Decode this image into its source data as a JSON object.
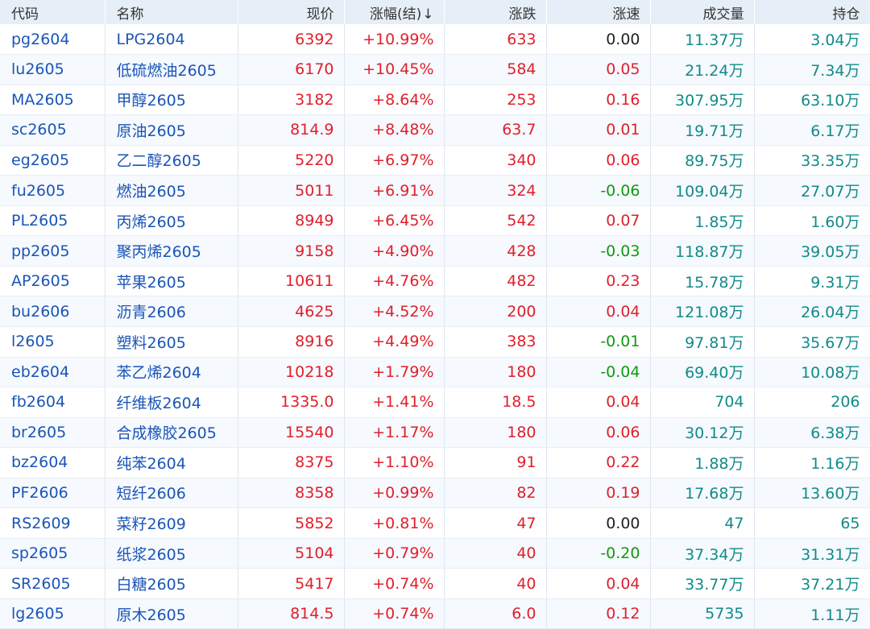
{
  "header": {
    "code": "代码",
    "name": "名称",
    "price": "现价",
    "change_pct": "涨幅(结)",
    "sort_arrow": "↓",
    "change": "涨跌",
    "speed": "涨速",
    "volume": "成交量",
    "open_interest": "持仓"
  },
  "colors": {
    "up": "#e0202c",
    "down": "#119911",
    "flat": "#222222",
    "code": "#1a55b8",
    "volume": "#118a8a",
    "header_bg": "#e6eef7"
  },
  "rows": [
    {
      "code": "pg2604",
      "name": "LPG2604",
      "price": "6392",
      "change_pct": "+10.99%",
      "change": "633",
      "speed": "0.00",
      "speed_dir": "flat",
      "volume": "11.37万",
      "oi": "3.04万"
    },
    {
      "code": "lu2605",
      "name": "低硫燃油2605",
      "price": "6170",
      "change_pct": "+10.45%",
      "change": "584",
      "speed": "0.05",
      "speed_dir": "up",
      "volume": "21.24万",
      "oi": "7.34万"
    },
    {
      "code": "MA2605",
      "name": "甲醇2605",
      "price": "3182",
      "change_pct": "+8.64%",
      "change": "253",
      "speed": "0.16",
      "speed_dir": "up",
      "volume": "307.95万",
      "oi": "63.10万"
    },
    {
      "code": "sc2605",
      "name": "原油2605",
      "price": "814.9",
      "change_pct": "+8.48%",
      "change": "63.7",
      "speed": "0.01",
      "speed_dir": "up",
      "volume": "19.71万",
      "oi": "6.17万"
    },
    {
      "code": "eg2605",
      "name": "乙二醇2605",
      "price": "5220",
      "change_pct": "+6.97%",
      "change": "340",
      "speed": "0.06",
      "speed_dir": "up",
      "volume": "89.75万",
      "oi": "33.35万"
    },
    {
      "code": "fu2605",
      "name": "燃油2605",
      "price": "5011",
      "change_pct": "+6.91%",
      "change": "324",
      "speed": "-0.06",
      "speed_dir": "down",
      "volume": "109.04万",
      "oi": "27.07万"
    },
    {
      "code": "PL2605",
      "name": "丙烯2605",
      "price": "8949",
      "change_pct": "+6.45%",
      "change": "542",
      "speed": "0.07",
      "speed_dir": "up",
      "volume": "1.85万",
      "oi": "1.60万"
    },
    {
      "code": "pp2605",
      "name": "聚丙烯2605",
      "price": "9158",
      "change_pct": "+4.90%",
      "change": "428",
      "speed": "-0.03",
      "speed_dir": "down",
      "volume": "118.87万",
      "oi": "39.05万"
    },
    {
      "code": "AP2605",
      "name": "苹果2605",
      "price": "10611",
      "change_pct": "+4.76%",
      "change": "482",
      "speed": "0.23",
      "speed_dir": "up",
      "volume": "15.78万",
      "oi": "9.31万"
    },
    {
      "code": "bu2606",
      "name": "沥青2606",
      "price": "4625",
      "change_pct": "+4.52%",
      "change": "200",
      "speed": "0.04",
      "speed_dir": "up",
      "volume": "121.08万",
      "oi": "26.04万"
    },
    {
      "code": "l2605",
      "name": "塑料2605",
      "price": "8916",
      "change_pct": "+4.49%",
      "change": "383",
      "speed": "-0.01",
      "speed_dir": "down",
      "volume": "97.81万",
      "oi": "35.67万"
    },
    {
      "code": "eb2604",
      "name": "苯乙烯2604",
      "price": "10218",
      "change_pct": "+1.79%",
      "change": "180",
      "speed": "-0.04",
      "speed_dir": "down",
      "volume": "69.40万",
      "oi": "10.08万"
    },
    {
      "code": "fb2604",
      "name": "纤维板2604",
      "price": "1335.0",
      "change_pct": "+1.41%",
      "change": "18.5",
      "speed": "0.04",
      "speed_dir": "up",
      "volume": "704",
      "oi": "206"
    },
    {
      "code": "br2605",
      "name": "合成橡胶2605",
      "price": "15540",
      "change_pct": "+1.17%",
      "change": "180",
      "speed": "0.06",
      "speed_dir": "up",
      "volume": "30.12万",
      "oi": "6.38万"
    },
    {
      "code": "bz2604",
      "name": "纯苯2604",
      "price": "8375",
      "change_pct": "+1.10%",
      "change": "91",
      "speed": "0.22",
      "speed_dir": "up",
      "volume": "1.88万",
      "oi": "1.16万"
    },
    {
      "code": "PF2606",
      "name": "短纤2606",
      "price": "8358",
      "change_pct": "+0.99%",
      "change": "82",
      "speed": "0.19",
      "speed_dir": "up",
      "volume": "17.68万",
      "oi": "13.60万"
    },
    {
      "code": "RS2609",
      "name": "菜籽2609",
      "price": "5852",
      "change_pct": "+0.81%",
      "change": "47",
      "speed": "0.00",
      "speed_dir": "flat",
      "volume": "47",
      "oi": "65"
    },
    {
      "code": "sp2605",
      "name": "纸浆2605",
      "price": "5104",
      "change_pct": "+0.79%",
      "change": "40",
      "speed": "-0.20",
      "speed_dir": "down",
      "volume": "37.34万",
      "oi": "31.31万"
    },
    {
      "code": "SR2605",
      "name": "白糖2605",
      "price": "5417",
      "change_pct": "+0.74%",
      "change": "40",
      "speed": "0.04",
      "speed_dir": "up",
      "volume": "33.77万",
      "oi": "37.21万"
    },
    {
      "code": "lg2605",
      "name": "原木2605",
      "price": "814.5",
      "change_pct": "+0.74%",
      "change": "6.0",
      "speed": "0.12",
      "speed_dir": "up",
      "volume": "5735",
      "oi": "1.11万"
    }
  ]
}
